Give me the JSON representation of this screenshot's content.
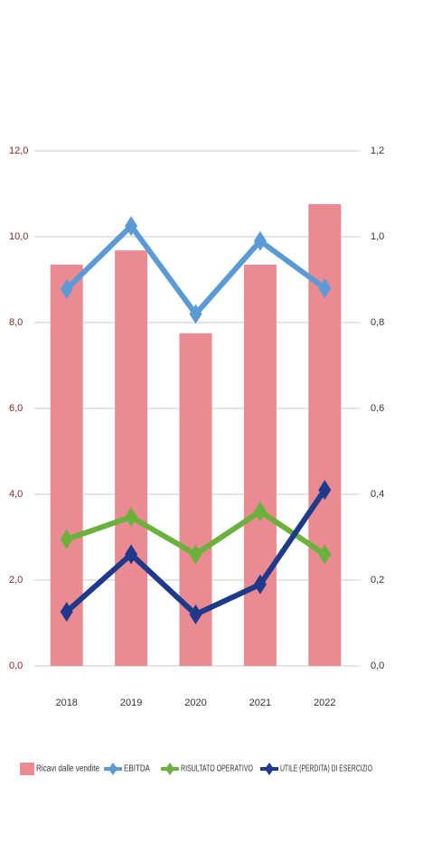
{
  "chart_data": {
    "type": "bar",
    "categories": [
      "2018",
      "2019",
      "2020",
      "2021",
      "2022"
    ],
    "ylim": [
      0,
      12
    ],
    "yticks": [
      {
        "value": 0,
        "label": "0,0"
      },
      {
        "value": 2,
        "label": "2,0"
      },
      {
        "value": 4,
        "label": "4,0"
      },
      {
        "value": 6,
        "label": "6,0"
      },
      {
        "value": 8,
        "label": "8,0"
      },
      {
        "value": 10,
        "label": "10,0"
      },
      {
        "value": 12,
        "label": "12,0"
      }
    ],
    "y2lim": [
      0,
      1.2
    ],
    "y2ticks": [
      {
        "value": 0,
        "label": "0,0"
      },
      {
        "value": 0.2,
        "label": "0,2"
      },
      {
        "value": 0.4,
        "label": "0,4"
      },
      {
        "value": 0.6,
        "label": "0,6"
      },
      {
        "value": 0.8,
        "label": "0,8"
      },
      {
        "value": 1.0,
        "label": "1,0"
      },
      {
        "value": 1.2,
        "label": "1,2"
      }
    ],
    "grid": true,
    "legend": "bottom",
    "series": [
      {
        "name": "Ricavi dalle vendite",
        "type": "bar",
        "color": "#ea8a93",
        "values": [
          9.35,
          9.68,
          7.75,
          9.35,
          10.76
        ]
      },
      {
        "name": "EBITDA",
        "type": "line",
        "axis": "y2",
        "color": "#5b9bd5",
        "values": [
          0.878,
          1.025,
          0.82,
          0.99,
          0.88
        ]
      },
      {
        "name": "RISULTATO OPERATIVO",
        "type": "line",
        "axis": "y2",
        "color": "#6ab23c",
        "values": [
          0.295,
          0.347,
          0.26,
          0.36,
          0.26
        ]
      },
      {
        "name": "UTILE (PERDITA) DI ESERCIZIO",
        "type": "line",
        "axis": "y2",
        "color": "#1f3a8a",
        "values": [
          0.126,
          0.26,
          0.12,
          0.19,
          0.41
        ]
      }
    ]
  }
}
